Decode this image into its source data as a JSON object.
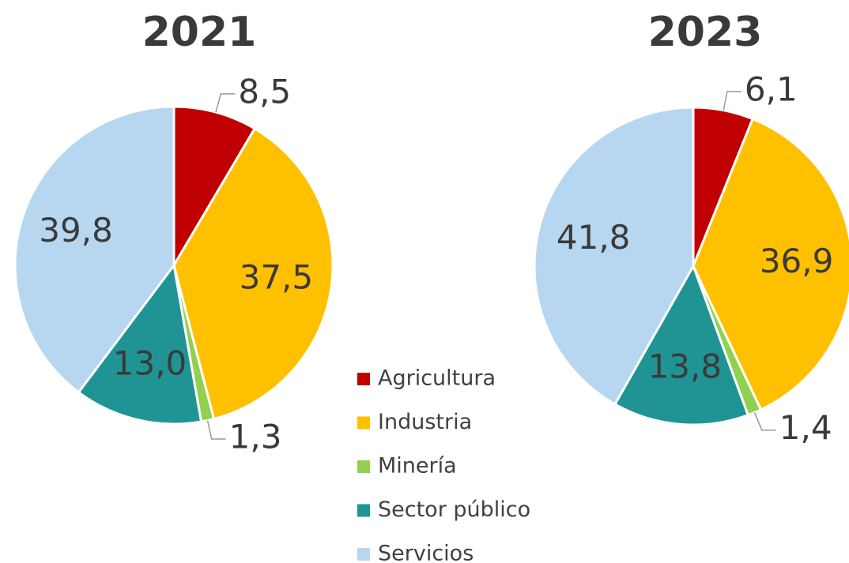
{
  "chart_data": [
    {
      "type": "pie",
      "title": "2021",
      "categories": [
        "Agricultura",
        "Industria",
        "Minería",
        "Sector público",
        "Servicios"
      ],
      "values": [
        8.5,
        37.5,
        1.3,
        13.0,
        39.8
      ],
      "value_labels": [
        "8,5",
        "37,5",
        "1,3",
        "13,0",
        "39,8"
      ],
      "colors": [
        "#c00000",
        "#ffc000",
        "#92d050",
        "#209494",
        "#b7d7f0"
      ]
    },
    {
      "type": "pie",
      "title": "2023",
      "categories": [
        "Agricultura",
        "Industria",
        "Minería",
        "Sector público",
        "Servicios"
      ],
      "values": [
        6.1,
        36.9,
        1.4,
        13.8,
        41.8
      ],
      "value_labels": [
        "6,1",
        "36,9",
        "1,4",
        "13,8",
        "41,8"
      ],
      "colors": [
        "#c00000",
        "#ffc000",
        "#92d050",
        "#209494",
        "#b7d7f0"
      ]
    }
  ]
}
